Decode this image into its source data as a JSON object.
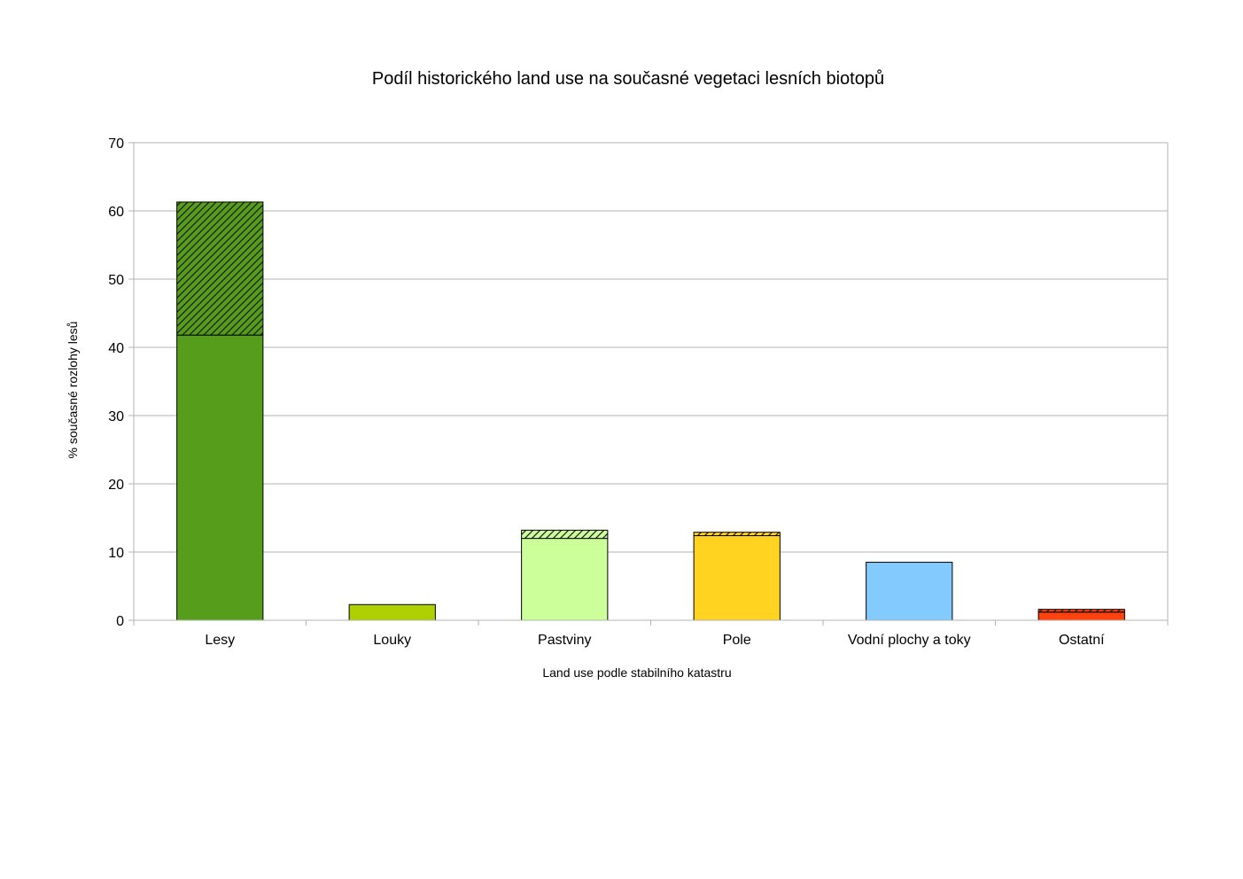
{
  "chart_data": {
    "type": "bar",
    "stacked": true,
    "title": "Podíl historického land use na současné vegetaci lesních biotopů",
    "xlabel": "Land use podle stabilního katastru",
    "ylabel": "% současné rozlohy lesů",
    "ylim": [
      0,
      70
    ],
    "yticks": [
      "0",
      "10",
      "20",
      "30",
      "40",
      "50",
      "60",
      "70"
    ],
    "grid": true,
    "legend": "none",
    "categories": [
      "Lesy",
      "Louky",
      "Pastviny",
      "Pole",
      "Vodní plochy a toky",
      "Ostatní"
    ],
    "colors": [
      "#579d1c",
      "#aecf00",
      "#ccff99",
      "#ffd320",
      "#83caff",
      "#ff420e"
    ],
    "series": [
      {
        "pattern": "solid",
        "values": [
          41.8,
          2.3,
          12.0,
          12.4,
          8.5,
          1.2
        ]
      },
      {
        "pattern": "hatched",
        "values": [
          19.5,
          0,
          1.2,
          0.5,
          0,
          0.4
        ]
      }
    ]
  }
}
